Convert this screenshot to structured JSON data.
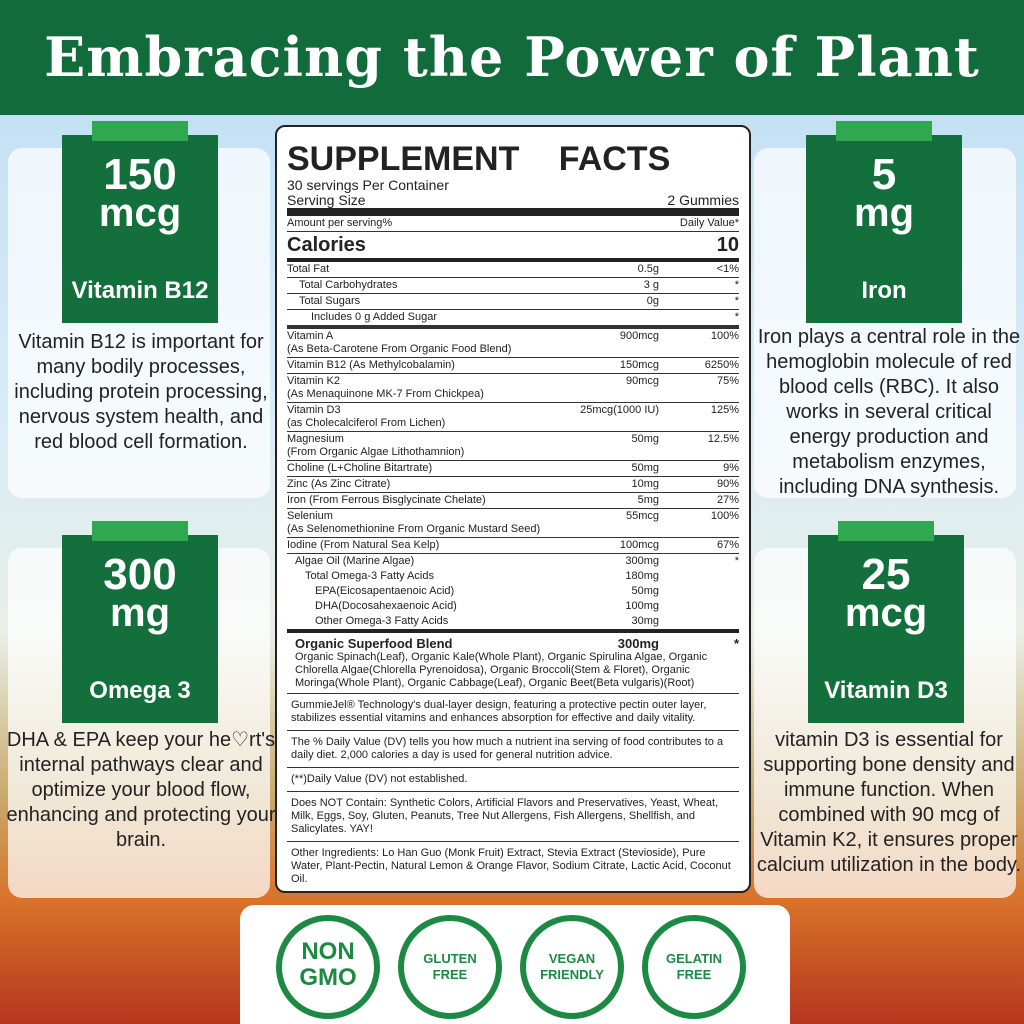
{
  "header": {
    "title": "Embracing the Power of Plant"
  },
  "panels": [
    {
      "amount": "150",
      "unit": "mcg",
      "name": "Vitamin B12",
      "description": "Vitamin B12 is important for many bodily processes, including protein processing, nervous system health, and red blood cell formation."
    },
    {
      "amount": "5",
      "unit": "mg",
      "name": "Iron",
      "description": "Iron plays a central role in the hemoglobin molecule of red blood cells (RBC). It also works in several critical energy production and metabolism enzymes, including DNA synthesis."
    },
    {
      "amount": "300",
      "unit": "mg",
      "name": "Omega 3",
      "description": "DHA & EPA keep your he♡rt's internal pathways clear and optimize your blood flow, enhancing and protecting your brain."
    },
    {
      "amount": "25",
      "unit": "mcg",
      "name": "Vitamin D3",
      "description": "vitamin D3 is essential for supporting bone density and immune function. When combined with 90 mcg of Vitamin K2, it ensures proper calcium utilization in the body."
    }
  ],
  "facts": {
    "title": "SUPPLEMENT FACTS",
    "servings": "30 servings Per Container",
    "serving_size_label": "Serving Size",
    "serving_size": "2 Gummies",
    "amount_label": "Amount per serving%",
    "dv_label": "Daily Value*",
    "calories_label": "Calories",
    "calories": "10",
    "rows": [
      {
        "name": "Total Fat",
        "amount": "0.5g",
        "dv": "<1%"
      },
      {
        "name": "Total Carbohydrates",
        "amount": "3 g",
        "dv": "*"
      },
      {
        "name": "Total Sugars",
        "amount": "0g",
        "dv": "*"
      },
      {
        "name": "Includes 0 g Added Sugar",
        "dv": "*"
      },
      {
        "name": "Vitamin A",
        "sub": "(As Beta-Carotene From Organic Food Blend)",
        "amount": "900mcg",
        "dv": "100%"
      },
      {
        "name": "Vitamin B12 (As Methylcobalamin)",
        "amount": "150mcg",
        "dv": "6250%"
      },
      {
        "name": "Vitamin K2",
        "sub": "(As Menaquinone MK-7 From Chickpea)",
        "amount": "90mcg",
        "dv": "75%"
      },
      {
        "name": "Vitamin D3",
        "sub": "(as Cholecalciferol From Lichen)",
        "amount": "25mcg(1000 IU)",
        "dv": "125%"
      },
      {
        "name": "Magnesium",
        "sub": "(From Organic Algae Lithothamnion)",
        "amount": "50mg",
        "dv": "12.5%"
      },
      {
        "name": "Choline (L+Choline Bitartrate)",
        "amount": "50mg",
        "dv": "9%"
      },
      {
        "name": "Zinc (As Zinc Citrate)",
        "amount": "10mg",
        "dv": "90%"
      },
      {
        "name": "Iron (From Ferrous Bisglycinate Chelate)",
        "amount": "5mg",
        "dv": "27%"
      },
      {
        "name": "Selenium",
        "sub": "(As Selenomethionine From Organic Mustard Seed)",
        "amount": "55mcg",
        "dv": "100%"
      },
      {
        "name": "Iodine (From Natural Sea Kelp)",
        "amount": "100mcg",
        "dv": "67%"
      }
    ],
    "omega": [
      {
        "name": "Algae Oil (Marine Algae)",
        "amount": "300mg",
        "dv": "*"
      },
      {
        "name": "Total Omega-3 Fatty Acids",
        "amount": "180mg"
      },
      {
        "name": "EPA(Eicosapentaenoic Acid)",
        "amount": "50mg"
      },
      {
        "name": "DHA(Docosahexaenoic Acid)",
        "amount": "100mg"
      },
      {
        "name": "Other Omega-3 Fatty Acids",
        "amount": "30mg"
      }
    ],
    "blend": {
      "name": "Organic Superfood Blend",
      "amount": "300mg",
      "dv": "*",
      "text": "Organic Spinach(Leaf), Organic Kale(Whole Plant), Organic Spirulina Algae, Organic Chlorella Algae(Chlorella Pyrenoidosa), Organic Broccoli(Stem & Floret), Organic Moringa(Whole Plant), Organic Cabbage(Leaf), Organic Beet(Beta vulgaris)(Root)"
    },
    "notes": [
      "GummieJel® Technology's dual-layer design, featuring a protective pectin outer layer, stabilizes essential vitamins and enhances absorption for effective and daily vitality.",
      "The % Daily Value (DV) tells you how much a nutrient ina serving of food contributes to a daily diet. 2,000 calories a day is used for general nutrition advice.",
      "(**)Daily Value (DV) not established.",
      "Does NOT Contain: Synthetic Colors, Artificial Flavors and Preservatives, Yeast, Wheat, Milk, Eggs, Soy, Gluten, Peanuts, Tree Nut Allergens, Fish Allergens, Shellfish, and Salicylates. YAY!",
      "Other Ingredients: Lo Han Guo (Monk Fruit) Extract, Stevia Extract (Stevioside), Pure Water, Plant-Pectin, Natural  Lemon & Orange Flavor, Sodium Citrate, Lactic Acid, Coconut Oil."
    ]
  },
  "badges": [
    "NON GMO",
    "GLUTEN FREE",
    "VEGAN FRIENDLY",
    "GELATIN FREE"
  ]
}
